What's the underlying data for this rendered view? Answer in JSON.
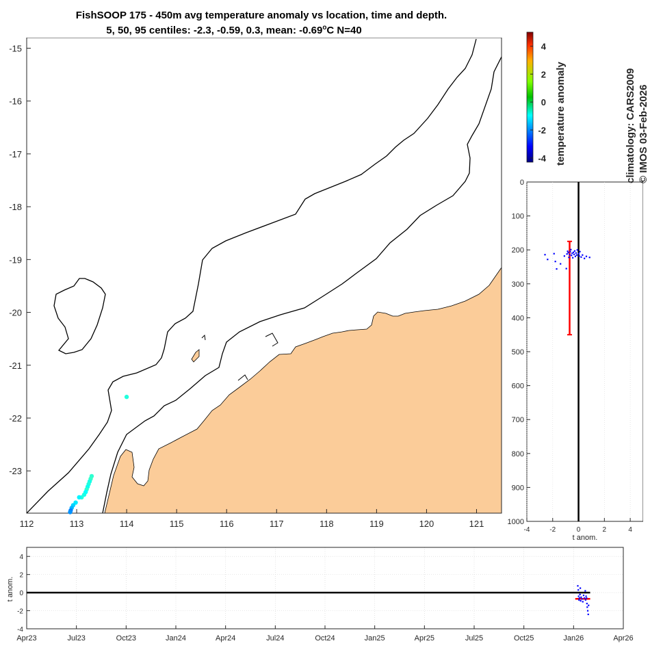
{
  "title": {
    "line1": "FishSOOP 175 - 450m avg temperature anomaly vs location, time and depth.",
    "line2": "5, 50, 95 centiles: -2.3, -0.59, 0.3, mean: -0.69",
    "degree_sup": "o",
    "line2_suffix": "C N=40"
  },
  "credits": {
    "climatology": "climatology: CARS2009",
    "copyright": "© IMOS 03-Feb-2026"
  },
  "colors": {
    "land": "#fbcc99",
    "profile_points": "#0000ff",
    "range_bar": "#ff0000",
    "zero_line": "#000000",
    "grid": "#d9d9d9"
  },
  "chart_data": [
    {
      "type": "scatter",
      "id": "map",
      "title": "location map",
      "xlabel": "",
      "ylabel": "",
      "xlim": [
        112,
        121.5
      ],
      "ylim": [
        -23.8,
        -14.8
      ],
      "x_ticks": [
        "112",
        "113",
        "114",
        "115",
        "116",
        "117",
        "118",
        "119",
        "120",
        "121"
      ],
      "y_ticks": [
        "-15",
        "-16",
        "-17",
        "-18",
        "-19",
        "-20",
        "-21",
        "-22",
        "-23"
      ],
      "points": [
        {
          "x": 114.0,
          "y": -21.6,
          "anomaly": -0.5
        },
        {
          "x": 113.3,
          "y": -23.1,
          "anomaly": -0.4
        },
        {
          "x": 113.28,
          "y": -23.15,
          "anomaly": -0.3
        },
        {
          "x": 113.26,
          "y": -23.2,
          "anomaly": -0.6
        },
        {
          "x": 113.24,
          "y": -23.25,
          "anomaly": -0.5
        },
        {
          "x": 113.22,
          "y": -23.3,
          "anomaly": -0.7
        },
        {
          "x": 113.2,
          "y": -23.35,
          "anomaly": -0.4
        },
        {
          "x": 113.18,
          "y": -23.4,
          "anomaly": -0.8
        },
        {
          "x": 113.15,
          "y": -23.45,
          "anomaly": -0.6
        },
        {
          "x": 113.1,
          "y": -23.5,
          "anomaly": -0.5
        },
        {
          "x": 113.05,
          "y": -23.5,
          "anomaly": -0.9
        },
        {
          "x": 112.98,
          "y": -23.6,
          "anomaly": -1.0
        },
        {
          "x": 112.93,
          "y": -23.65,
          "anomaly": -1.2
        },
        {
          "x": 112.9,
          "y": -23.7,
          "anomaly": -1.5
        },
        {
          "x": 112.88,
          "y": -23.75,
          "anomaly": -2.0
        },
        {
          "x": 112.87,
          "y": -23.78,
          "anomaly": -1.8
        }
      ]
    },
    {
      "type": "colorbar",
      "id": "colorbar",
      "label": "temperature anomaly",
      "clim": [
        -4.3,
        5
      ],
      "ticks": [
        "-4",
        "-2",
        "0",
        "2",
        "4"
      ],
      "colormap": "jet"
    },
    {
      "type": "scatter",
      "id": "depth_profile",
      "xlabel": "t anom.",
      "ylabel": "",
      "xlim": [
        -4,
        5
      ],
      "ylim": [
        0,
        1000
      ],
      "y_reversed": true,
      "x_ticks": [
        "-4",
        "-2",
        "0",
        "2",
        "4"
      ],
      "y_ticks": [
        "0",
        "100",
        "200",
        "300",
        "400",
        "500",
        "600",
        "700",
        "800",
        "900",
        "1000"
      ],
      "range_bar": {
        "x": -0.69,
        "depth_min": 175,
        "depth_max": 450
      },
      "points": [
        {
          "t": -2.6,
          "d": 214
        },
        {
          "t": -2.4,
          "d": 228
        },
        {
          "t": -1.9,
          "d": 211
        },
        {
          "t": -1.8,
          "d": 234
        },
        {
          "t": -1.7,
          "d": 256
        },
        {
          "t": -1.4,
          "d": 241
        },
        {
          "t": -1.1,
          "d": 218
        },
        {
          "t": -0.95,
          "d": 255
        },
        {
          "t": -0.9,
          "d": 212
        },
        {
          "t": -0.85,
          "d": 204
        },
        {
          "t": -0.8,
          "d": 208
        },
        {
          "t": -0.75,
          "d": 222
        },
        {
          "t": -0.7,
          "d": 214
        },
        {
          "t": -0.65,
          "d": 205
        },
        {
          "t": -0.6,
          "d": 199
        },
        {
          "t": -0.55,
          "d": 216
        },
        {
          "t": -0.5,
          "d": 210
        },
        {
          "t": -0.45,
          "d": 223
        },
        {
          "t": -0.4,
          "d": 207
        },
        {
          "t": -0.35,
          "d": 213
        },
        {
          "t": -0.3,
          "d": 203
        },
        {
          "t": -0.25,
          "d": 219
        },
        {
          "t": -0.2,
          "d": 209
        },
        {
          "t": -0.15,
          "d": 215
        },
        {
          "t": -0.1,
          "d": 200
        },
        {
          "t": 0.0,
          "d": 211
        },
        {
          "t": 0.05,
          "d": 218
        },
        {
          "t": 0.1,
          "d": 205
        },
        {
          "t": 0.2,
          "d": 221
        },
        {
          "t": 0.3,
          "d": 215
        },
        {
          "t": 0.45,
          "d": 225
        },
        {
          "t": 0.6,
          "d": 219
        },
        {
          "t": 0.85,
          "d": 222
        }
      ]
    },
    {
      "type": "scatter",
      "id": "timeseries",
      "xlabel": "",
      "ylabel": "t anom.",
      "ylim": [
        -4,
        5
      ],
      "x_range_months": [
        0,
        36
      ],
      "x_ticks": [
        "Apr23",
        "Jul23",
        "Oct23",
        "Jan24",
        "Apr24",
        "Jul24",
        "Oct24",
        "Jan25",
        "Apr25",
        "Jul25",
        "Oct25",
        "Jan26",
        "Apr26"
      ],
      "y_ticks": [
        "-4",
        "-2",
        "0",
        "2",
        "4"
      ],
      "mean_line": {
        "x_start": 33.1,
        "x_end": 34.0,
        "value": -0.69
      },
      "points": [
        {
          "m": 33.25,
          "v": 0.75
        },
        {
          "m": 33.28,
          "v": 0.3
        },
        {
          "m": 33.3,
          "v": -0.4
        },
        {
          "m": 33.32,
          "v": -0.8
        },
        {
          "m": 33.35,
          "v": -0.6
        },
        {
          "m": 33.38,
          "v": -0.2
        },
        {
          "m": 33.4,
          "v": 0.5
        },
        {
          "m": 33.42,
          "v": -0.9
        },
        {
          "m": 33.45,
          "v": -0.5
        },
        {
          "m": 33.5,
          "v": -0.7
        },
        {
          "m": 33.55,
          "v": -1.0
        },
        {
          "m": 33.6,
          "v": -0.3
        },
        {
          "m": 33.65,
          "v": -0.6
        },
        {
          "m": 33.7,
          "v": 0.2
        },
        {
          "m": 33.72,
          "v": -0.8
        },
        {
          "m": 33.75,
          "v": -0.4
        },
        {
          "m": 33.78,
          "v": -0.6
        },
        {
          "m": 33.8,
          "v": -1.2
        },
        {
          "m": 33.82,
          "v": -1.6
        },
        {
          "m": 33.85,
          "v": -2.0
        },
        {
          "m": 33.88,
          "v": -2.4
        },
        {
          "m": 33.9,
          "v": -1.4
        }
      ]
    }
  ]
}
